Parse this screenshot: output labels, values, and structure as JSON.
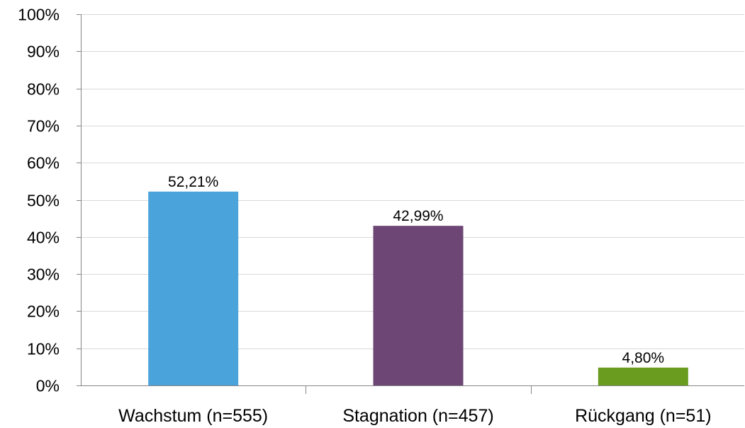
{
  "chart_data": {
    "type": "bar",
    "categories": [
      "Wachstum (n=555)",
      "Stagnation (n=457)",
      "Rückgang (n=51)"
    ],
    "values": [
      52.21,
      42.99,
      4.8
    ],
    "data_labels": [
      "52,21%",
      "42,99%",
      "4,80%"
    ],
    "colors": [
      "#4aa3db",
      "#6d4675",
      "#6a9c1f"
    ],
    "ylim": [
      0,
      100
    ],
    "yticks": [
      0,
      10,
      20,
      30,
      40,
      50,
      60,
      70,
      80,
      90,
      100
    ],
    "ytick_labels": [
      "0%",
      "10%",
      "20%",
      "30%",
      "40%",
      "50%",
      "60%",
      "70%",
      "80%",
      "90%",
      "100%"
    ],
    "grid": true,
    "legend": "none",
    "title": "",
    "xlabel": "",
    "ylabel": ""
  }
}
